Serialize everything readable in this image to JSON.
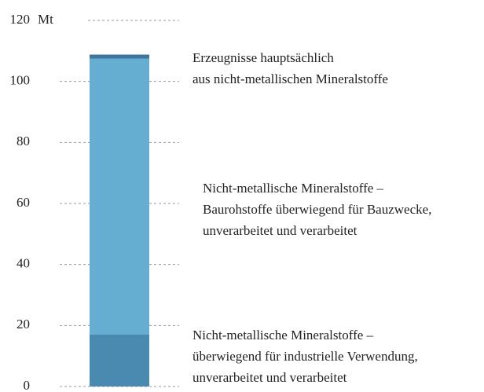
{
  "chart_data": {
    "type": "stacked_bar",
    "y_unit": "Mt",
    "ylim": [
      0,
      120
    ],
    "yticks": [
      0,
      20,
      40,
      60,
      80,
      100,
      120
    ],
    "grid": true,
    "series": [
      {
        "name": [
          "Nicht-metallische Mineralstoffe –",
          "überwiegend für industrielle Verwendung,",
          "unverarbeitet und verarbeitet"
        ],
        "color": "#4a89b0",
        "values": [
          17
        ]
      },
      {
        "name": [
          "Nicht-metallische Mineralstoffe –",
          "Baurohstoffe überwiegend für Bauzwecke,",
          "unverarbeitet und verarbeitet"
        ],
        "color": "#65aed1",
        "values": [
          90.5
        ]
      },
      {
        "name": [
          "Erzeugnisse hauptsächlich",
          "aus nicht-metallischen Mineralstoffe"
        ],
        "color": "#3e76a0",
        "values": [
          1.3
        ]
      }
    ]
  }
}
